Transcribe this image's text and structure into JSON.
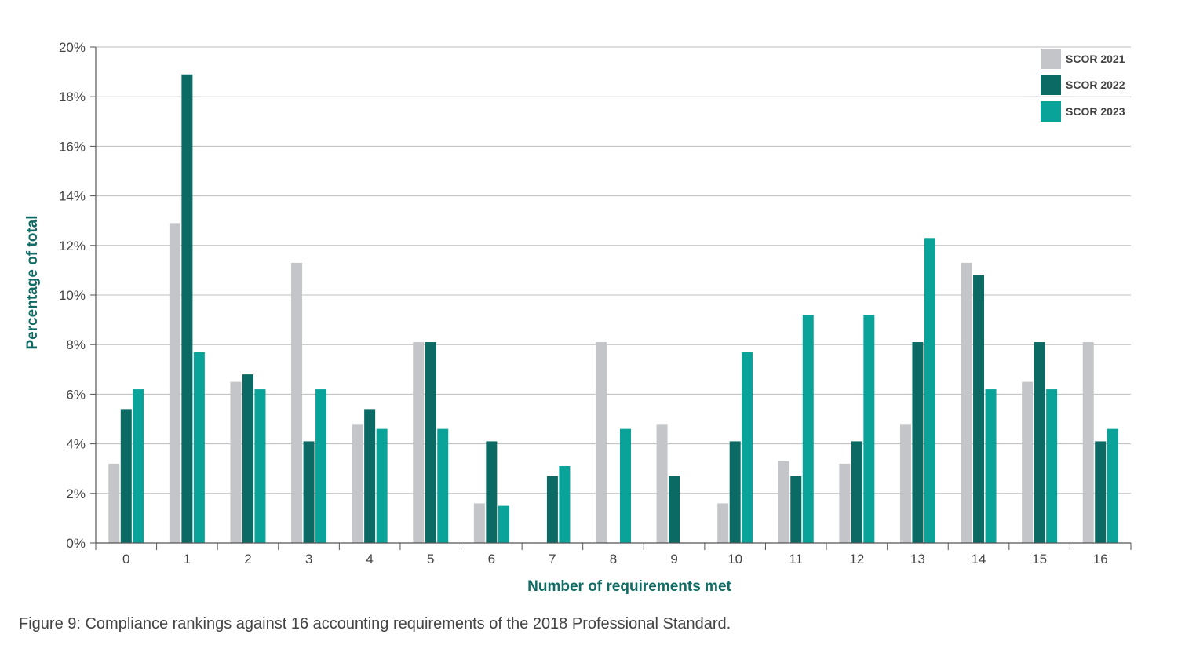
{
  "chart_data": {
    "type": "bar",
    "xlabel": "Number of requirements met",
    "ylabel": "Percentage of total",
    "ylim": [
      0,
      20
    ],
    "yticks": [
      0,
      2,
      4,
      6,
      8,
      10,
      12,
      14,
      16,
      18,
      20
    ],
    "ytick_labels": [
      "0%",
      "2%",
      "4%",
      "6%",
      "8%",
      "10%",
      "12%",
      "14%",
      "16%",
      "18%",
      "20%"
    ],
    "categories": [
      "0",
      "1",
      "2",
      "3",
      "4",
      "5",
      "6",
      "7",
      "8",
      "9",
      "10",
      "11",
      "12",
      "13",
      "14",
      "15",
      "16"
    ],
    "grid": "horizontal",
    "legend_position": "top-right",
    "series": [
      {
        "name": "SCOR 2021",
        "color": "#c4c5c8",
        "values": [
          3.2,
          12.9,
          6.5,
          11.3,
          4.8,
          8.1,
          1.6,
          0,
          8.1,
          4.8,
          1.6,
          3.3,
          3.2,
          4.8,
          11.3,
          6.5,
          8.1
        ]
      },
      {
        "name": "SCOR 2022",
        "color": "#0b6b64",
        "values": [
          5.4,
          18.9,
          6.8,
          4.1,
          5.4,
          8.1,
          4.1,
          2.7,
          0,
          2.7,
          4.1,
          2.7,
          4.1,
          8.1,
          10.8,
          8.1,
          4.1
        ]
      },
      {
        "name": "SCOR 2023",
        "color": "#0aa39a",
        "values": [
          6.2,
          7.7,
          6.2,
          6.2,
          4.6,
          4.6,
          1.5,
          3.1,
          4.6,
          0,
          7.7,
          9.2,
          9.2,
          12.3,
          6.2,
          6.2,
          4.6
        ]
      }
    ]
  },
  "caption": "Figure 9: Compliance rankings against 16 accounting requirements of the 2018 Professional Standard."
}
